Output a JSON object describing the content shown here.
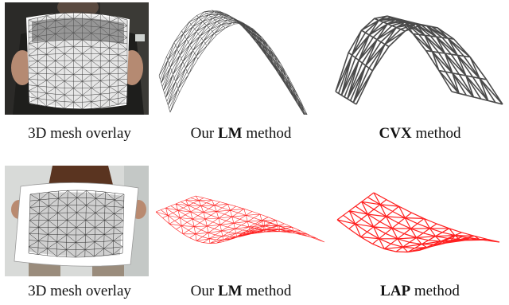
{
  "figure": {
    "rows": [
      {
        "panels": [
          {
            "name": "photo",
            "caption_pre": "3D mesh overlay",
            "caption_bold": "",
            "caption_post": ""
          },
          {
            "name": "lm",
            "caption_pre": "Our ",
            "caption_bold": "LM",
            "caption_post": " method"
          },
          {
            "name": "cvx",
            "caption_pre": "",
            "caption_bold": "CVX",
            "caption_post": " method"
          }
        ],
        "mesh_color": "#4a4a4a"
      },
      {
        "panels": [
          {
            "name": "photo",
            "caption_pre": "3D mesh overlay",
            "caption_bold": "",
            "caption_post": ""
          },
          {
            "name": "lm",
            "caption_pre": "Our ",
            "caption_bold": "LM",
            "caption_post": " method"
          },
          {
            "name": "lap",
            "caption_pre": "",
            "caption_bold": "LAP",
            "caption_post": " method"
          }
        ],
        "mesh_color": "#ff2020"
      }
    ]
  }
}
